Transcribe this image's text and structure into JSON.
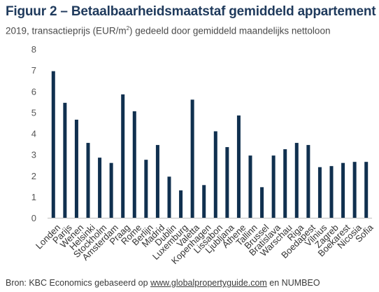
{
  "header": {
    "title": "Figuur 2 – Betaalbaarheidsmaatstaf gemiddeld appartement",
    "subtitle_prefix": "2019,  transactieprijs (EUR/m",
    "subtitle_sup": "2",
    "subtitle_suffix": ") gedeeld door gemiddeld maandelijks nettoloon"
  },
  "footer": {
    "source_prefix": "Bron:  KBC Economics gebaseerd op ",
    "source_link": "www.globalpropertyguide.com",
    "source_suffix": "  en NUMBEO"
  },
  "colors": {
    "bar": "#10304f",
    "axis": "#bfbfbf"
  },
  "chart_data": {
    "type": "bar",
    "categories": [
      "Londen",
      "Parijs",
      "Wenen",
      "Helsinki",
      "Stockholm",
      "Amsterdam",
      "Praag",
      "Rome",
      "Berlijn",
      "Madrid",
      "Dublin",
      "Luxemburg",
      "Valetta",
      "Kopenhagen",
      "Lissabon",
      "Ljubljana",
      "Athene",
      "Tallinn",
      "Brussel",
      "Bratislava",
      "Warschau",
      "Riga",
      "Boedapest",
      "Vilnius",
      "Zagreb",
      "Boekarest",
      "Nicosia",
      "Sofia"
    ],
    "values": [
      6.95,
      5.45,
      4.65,
      3.55,
      2.85,
      2.6,
      5.85,
      5.05,
      2.75,
      3.45,
      1.95,
      1.3,
      5.6,
      1.55,
      4.1,
      3.35,
      4.85,
      2.95,
      1.45,
      2.95,
      3.25,
      3.55,
      3.45,
      2.4,
      2.45,
      2.6,
      2.65,
      2.65
    ],
    "y_ticks": [
      "0",
      "1",
      "2",
      "3",
      "4",
      "5",
      "6",
      "7",
      "8"
    ],
    "ylim": [
      0,
      8
    ],
    "grid": false,
    "legend": "none"
  }
}
